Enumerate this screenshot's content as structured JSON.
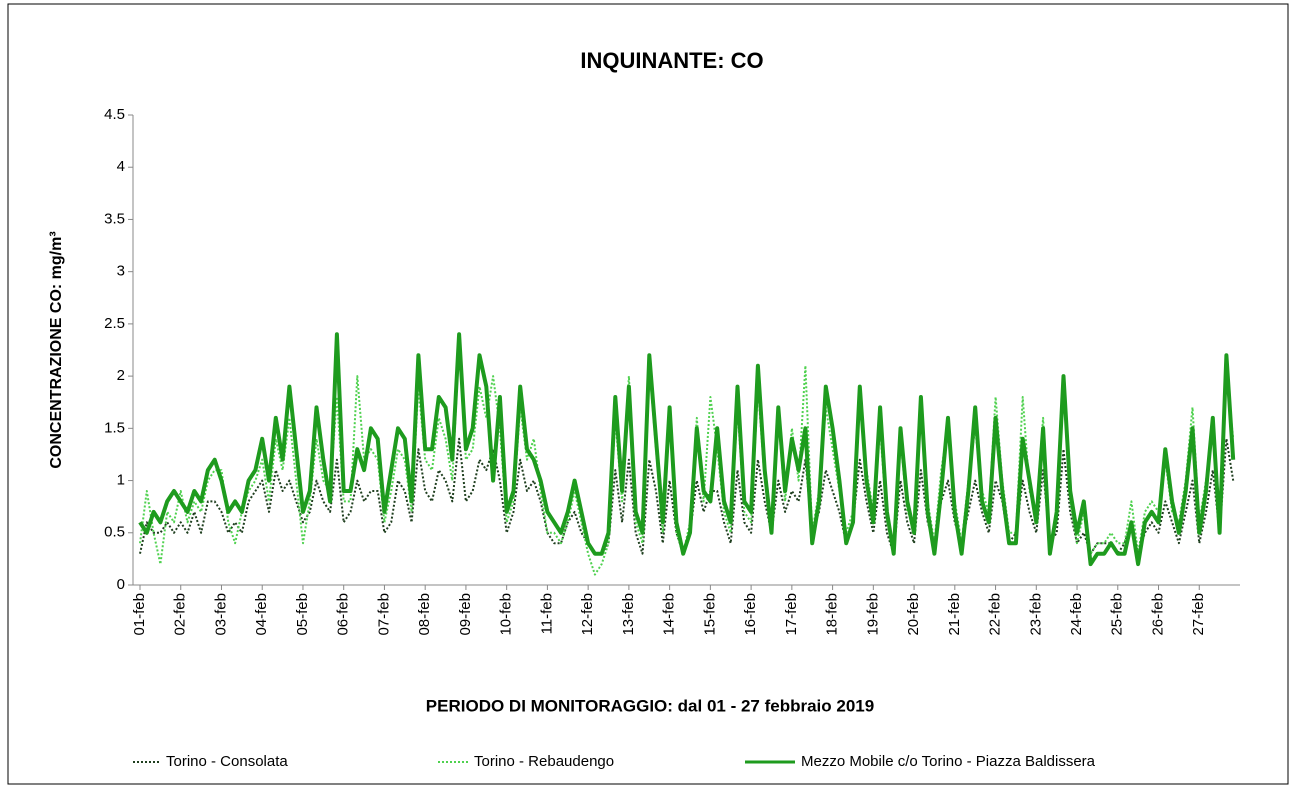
{
  "chart_data": {
    "type": "line",
    "title": "INQUINANTE: CO",
    "xlabel": "PERIODO DI MONITORAGGIO: dal 01 - 27 febbraio 2019",
    "ylabel": "CONCENTRAZIONE CO: mg/m³",
    "ylim": [
      0,
      4.5
    ],
    "yticks": [
      0,
      0.5,
      1,
      1.5,
      2,
      2.5,
      3,
      3.5,
      4,
      4.5
    ],
    "categories": [
      "01-feb",
      null,
      null,
      null,
      null,
      null,
      "02-feb",
      null,
      null,
      null,
      null,
      null,
      "03-feb",
      null,
      null,
      null,
      null,
      null,
      "04-feb",
      null,
      null,
      null,
      null,
      null,
      "05-feb",
      null,
      null,
      null,
      null,
      null,
      "06-feb",
      null,
      null,
      null,
      null,
      null,
      "07-feb",
      null,
      null,
      null,
      null,
      null,
      "08-feb",
      null,
      null,
      null,
      null,
      null,
      "09-feb",
      null,
      null,
      null,
      null,
      null,
      "10-feb",
      null,
      null,
      null,
      null,
      null,
      "11-feb",
      null,
      null,
      null,
      null,
      null,
      "12-feb",
      null,
      null,
      null,
      null,
      null,
      "13-feb",
      null,
      null,
      null,
      null,
      null,
      "14-feb",
      null,
      null,
      null,
      null,
      null,
      "15-feb",
      null,
      null,
      null,
      null,
      null,
      "16-feb",
      null,
      null,
      null,
      null,
      null,
      "17-feb",
      null,
      null,
      null,
      null,
      null,
      "18-feb",
      null,
      null,
      null,
      null,
      null,
      "19-feb",
      null,
      null,
      null,
      null,
      null,
      "20-feb",
      null,
      null,
      null,
      null,
      null,
      "21-feb",
      null,
      null,
      null,
      null,
      null,
      "22-feb",
      null,
      null,
      null,
      null,
      null,
      "23-feb",
      null,
      null,
      null,
      null,
      null,
      "24-feb",
      null,
      null,
      null,
      null,
      null,
      "25-feb",
      null,
      null,
      null,
      null,
      null,
      "26-feb",
      null,
      null,
      null,
      null,
      null,
      "27-feb",
      null,
      null,
      null,
      null,
      null
    ],
    "series": [
      {
        "name": "Torino - Consolata",
        "color": "#1f3f1f",
        "style": "dotted",
        "values": [
          0.3,
          0.6,
          0.5,
          0.5,
          0.6,
          0.5,
          0.6,
          0.5,
          0.7,
          0.5,
          0.8,
          0.8,
          0.7,
          0.5,
          0.6,
          0.5,
          0.8,
          0.9,
          1.0,
          0.7,
          1.1,
          0.9,
          1.0,
          0.8,
          0.6,
          0.7,
          1.0,
          0.8,
          0.7,
          1.2,
          0.6,
          0.7,
          1.0,
          0.8,
          0.9,
          0.9,
          0.5,
          0.6,
          1.0,
          0.9,
          0.6,
          1.3,
          0.9,
          0.8,
          1.1,
          1.0,
          0.8,
          1.4,
          0.8,
          0.9,
          1.2,
          1.1,
          1.3,
          1.0,
          0.5,
          0.7,
          1.2,
          0.9,
          1.0,
          0.8,
          0.5,
          0.4,
          0.4,
          0.6,
          0.7,
          0.5,
          0.4,
          0.3,
          0.3,
          0.4,
          1.1,
          0.6,
          1.2,
          0.5,
          0.3,
          1.2,
          0.9,
          0.4,
          1.0,
          0.5,
          0.3,
          0.5,
          1.0,
          0.7,
          0.9,
          0.9,
          0.6,
          0.4,
          1.1,
          0.6,
          0.5,
          1.2,
          0.8,
          0.5,
          1.0,
          0.7,
          0.9,
          0.8,
          1.2,
          0.5,
          0.7,
          1.1,
          0.9,
          0.7,
          0.4,
          0.6,
          1.2,
          0.8,
          0.5,
          1.0,
          0.5,
          0.3,
          1.0,
          0.6,
          0.4,
          1.1,
          0.6,
          0.4,
          0.8,
          1.0,
          0.6,
          0.4,
          0.7,
          1.0,
          0.7,
          0.5,
          1.0,
          0.8,
          0.4,
          0.5,
          1.0,
          0.7,
          0.5,
          1.1,
          0.4,
          0.5,
          1.3,
          0.7,
          0.4,
          0.5,
          0.3,
          0.4,
          0.4,
          0.4,
          0.3,
          0.4,
          0.6,
          0.3,
          0.5,
          0.6,
          0.5,
          0.8,
          0.6,
          0.4,
          0.7,
          1.0,
          0.4,
          0.7,
          1.1,
          0.5,
          1.4,
          1.0
        ]
      },
      {
        "name": "Torino - Rebaudengo",
        "color": "#4fd14f",
        "style": "dotted",
        "values": [
          0.4,
          0.9,
          0.5,
          0.2,
          0.7,
          0.6,
          0.9,
          0.6,
          0.8,
          0.7,
          1.0,
          1.1,
          1.1,
          0.6,
          0.4,
          0.7,
          0.9,
          1.0,
          1.2,
          0.8,
          1.4,
          1.1,
          1.6,
          1.0,
          0.4,
          0.8,
          1.4,
          1.0,
          0.9,
          1.8,
          0.8,
          0.8,
          2.0,
          1.2,
          1.3,
          1.2,
          0.6,
          0.9,
          1.3,
          1.2,
          0.7,
          1.9,
          1.2,
          1.1,
          1.6,
          1.4,
          1.0,
          2.3,
          1.2,
          1.3,
          1.9,
          1.6,
          2.0,
          1.5,
          0.6,
          0.8,
          1.7,
          1.2,
          1.4,
          0.9,
          0.5,
          0.5,
          0.4,
          0.6,
          0.9,
          0.6,
          0.3,
          0.1,
          0.2,
          0.4,
          1.6,
          0.8,
          2.0,
          0.6,
          0.4,
          2.1,
          1.3,
          0.5,
          1.6,
          0.5,
          0.3,
          0.6,
          1.6,
          0.8,
          1.8,
          1.3,
          0.7,
          0.5,
          1.7,
          0.7,
          0.6,
          1.9,
          1.0,
          0.6,
          1.6,
          0.8,
          1.5,
          1.0,
          2.1,
          0.5,
          0.9,
          1.7,
          1.3,
          0.9,
          0.5,
          0.7,
          1.8,
          1.1,
          0.7,
          1.5,
          0.6,
          0.4,
          1.4,
          0.7,
          0.6,
          1.7,
          0.8,
          0.4,
          1.1,
          1.5,
          0.8,
          0.4,
          1.0,
          1.5,
          0.9,
          0.7,
          1.8,
          1.0,
          0.5,
          0.5,
          1.8,
          0.9,
          0.7,
          1.6,
          0.4,
          0.6,
          1.9,
          0.8,
          0.4,
          0.7,
          0.3,
          0.4,
          0.4,
          0.5,
          0.4,
          0.4,
          0.8,
          0.3,
          0.7,
          0.8,
          0.7,
          1.2,
          0.7,
          0.6,
          1.0,
          1.7,
          0.6,
          1.0,
          1.5,
          0.6,
          2.0,
          1.4
        ]
      },
      {
        "name": "Mezzo Mobile c/o Torino - Piazza Baldissera",
        "color": "#1e9b1e",
        "style": "solid",
        "values": [
          0.6,
          0.5,
          0.7,
          0.6,
          0.8,
          0.9,
          0.8,
          0.7,
          0.9,
          0.8,
          1.1,
          1.2,
          1.0,
          0.7,
          0.8,
          0.7,
          1.0,
          1.1,
          1.4,
          1.0,
          1.6,
          1.2,
          1.9,
          1.3,
          0.7,
          0.9,
          1.7,
          1.2,
          0.8,
          2.4,
          0.9,
          0.9,
          1.3,
          1.1,
          1.5,
          1.4,
          0.7,
          1.1,
          1.5,
          1.4,
          0.8,
          2.2,
          1.3,
          1.3,
          1.8,
          1.7,
          1.2,
          2.4,
          1.3,
          1.5,
          2.2,
          1.9,
          1.0,
          1.8,
          0.7,
          0.9,
          1.9,
          1.3,
          1.2,
          1.0,
          0.7,
          0.6,
          0.5,
          0.7,
          1.0,
          0.7,
          0.4,
          0.3,
          0.3,
          0.5,
          1.8,
          0.9,
          1.9,
          0.7,
          0.5,
          2.2,
          1.4,
          0.6,
          1.7,
          0.6,
          0.3,
          0.5,
          1.5,
          0.9,
          0.8,
          1.5,
          0.8,
          0.6,
          1.9,
          0.8,
          0.7,
          2.1,
          1.1,
          0.5,
          1.7,
          0.9,
          1.4,
          1.1,
          1.5,
          0.4,
          0.8,
          1.9,
          1.5,
          1.0,
          0.4,
          0.6,
          1.9,
          1.0,
          0.6,
          1.7,
          0.7,
          0.3,
          1.5,
          0.8,
          0.5,
          1.8,
          0.7,
          0.3,
          0.9,
          1.6,
          0.7,
          0.3,
          0.9,
          1.7,
          0.8,
          0.6,
          1.6,
          0.9,
          0.4,
          0.4,
          1.4,
          1.0,
          0.6,
          1.5,
          0.3,
          0.7,
          2.0,
          0.9,
          0.5,
          0.8,
          0.2,
          0.3,
          0.3,
          0.4,
          0.3,
          0.3,
          0.6,
          0.2,
          0.6,
          0.7,
          0.6,
          1.3,
          0.8,
          0.5,
          0.9,
          1.5,
          0.5,
          0.9,
          1.6,
          0.5,
          2.2,
          1.2
        ]
      }
    ]
  }
}
